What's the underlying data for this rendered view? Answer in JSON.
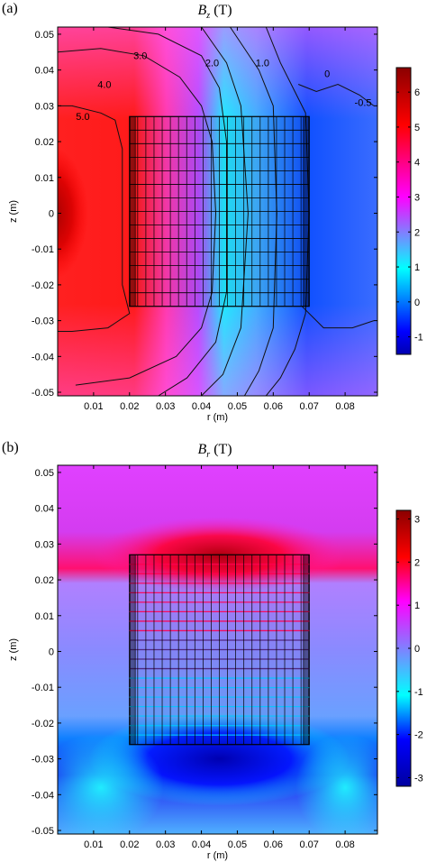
{
  "chart_data": [
    {
      "type": "heatmap",
      "panel_label": "(a)",
      "title_symbol": "B",
      "title_subscript": "z",
      "title_unit": "(T)",
      "xlabel": "r (m)",
      "ylabel": "z (m)",
      "xlim": [
        0,
        0.089
      ],
      "ylim": [
        -0.051,
        0.052
      ],
      "x_ticks": [
        "0.01",
        "0.02",
        "0.03",
        "0.04",
        "0.05",
        "0.06",
        "0.07",
        "0.08"
      ],
      "x_tick_values": [
        0.01,
        0.02,
        0.03,
        0.04,
        0.05,
        0.06,
        0.07,
        0.08
      ],
      "y_ticks": [
        "0.05",
        "0.04",
        "0.03",
        "0.02",
        "0.01",
        "0",
        "-0.01",
        "-0.02",
        "-0.03",
        "-0.04",
        "-0.05"
      ],
      "y_tick_values": [
        0.05,
        0.04,
        0.03,
        0.02,
        0.01,
        0,
        -0.01,
        -0.02,
        -0.03,
        -0.04,
        -0.05
      ],
      "colorbar_ticks": [
        "6",
        "5",
        "4",
        "3",
        "2",
        "1",
        "0",
        "-1"
      ],
      "colorbar_tick_values": [
        6,
        5,
        4,
        3,
        2,
        1,
        0,
        -1
      ],
      "colorbar_range": [
        -1.5,
        6.7
      ],
      "colormap": [
        "#0000b0",
        "#0000ff",
        "#00ffff",
        "#ff00ff",
        "#ff0000",
        "#8b0000"
      ],
      "contour_labels": [
        {
          "text": "3.0",
          "value": 3.0
        },
        {
          "text": "2.0",
          "value": 2.0
        },
        {
          "text": "1.0",
          "value": 1.0
        },
        {
          "text": "0",
          "value": 0
        },
        {
          "text": "4.0",
          "value": 4.0
        },
        {
          "text": "-0.5",
          "value": -0.5
        },
        {
          "text": "5.0",
          "value": 5.0
        }
      ],
      "magnet_region": {
        "r_inner": 0.02,
        "r_outer": 0.07,
        "z_min": -0.026,
        "z_max": 0.027
      }
    },
    {
      "type": "heatmap",
      "panel_label": "(b)",
      "title_symbol": "B",
      "title_subscript": "r",
      "title_unit": "(T)",
      "xlabel": "r (m)",
      "ylabel": "z (m)",
      "xlim": [
        0,
        0.089
      ],
      "ylim": [
        -0.051,
        0.052
      ],
      "x_ticks": [
        "0.01",
        "0.02",
        "0.03",
        "0.04",
        "0.05",
        "0.06",
        "0.07",
        "0.08"
      ],
      "x_tick_values": [
        0.01,
        0.02,
        0.03,
        0.04,
        0.05,
        0.06,
        0.07,
        0.08
      ],
      "y_ticks": [
        "0.05",
        "0.04",
        "0.03",
        "0.02",
        "0.01",
        "0",
        "-0.01",
        "-0.02",
        "-0.03",
        "-0.04",
        "-0.05"
      ],
      "y_tick_values": [
        0.05,
        0.04,
        0.03,
        0.02,
        0.01,
        0,
        -0.01,
        -0.02,
        -0.03,
        -0.04,
        -0.05
      ],
      "colorbar_ticks": [
        "3",
        "2",
        "1",
        "0",
        "-1",
        "-2",
        "-3"
      ],
      "colorbar_tick_values": [
        3,
        2,
        1,
        0,
        -1,
        -2,
        -3
      ],
      "colorbar_range": [
        -3.2,
        3.2
      ],
      "colormap": [
        "#0000a0",
        "#0000ff",
        "#00ffff",
        "#8080ff",
        "#ff00ff",
        "#ff0000",
        "#8b0000"
      ],
      "magnet_region": {
        "r_inner": 0.02,
        "r_outer": 0.07,
        "z_min": -0.026,
        "z_max": 0.027
      }
    }
  ]
}
